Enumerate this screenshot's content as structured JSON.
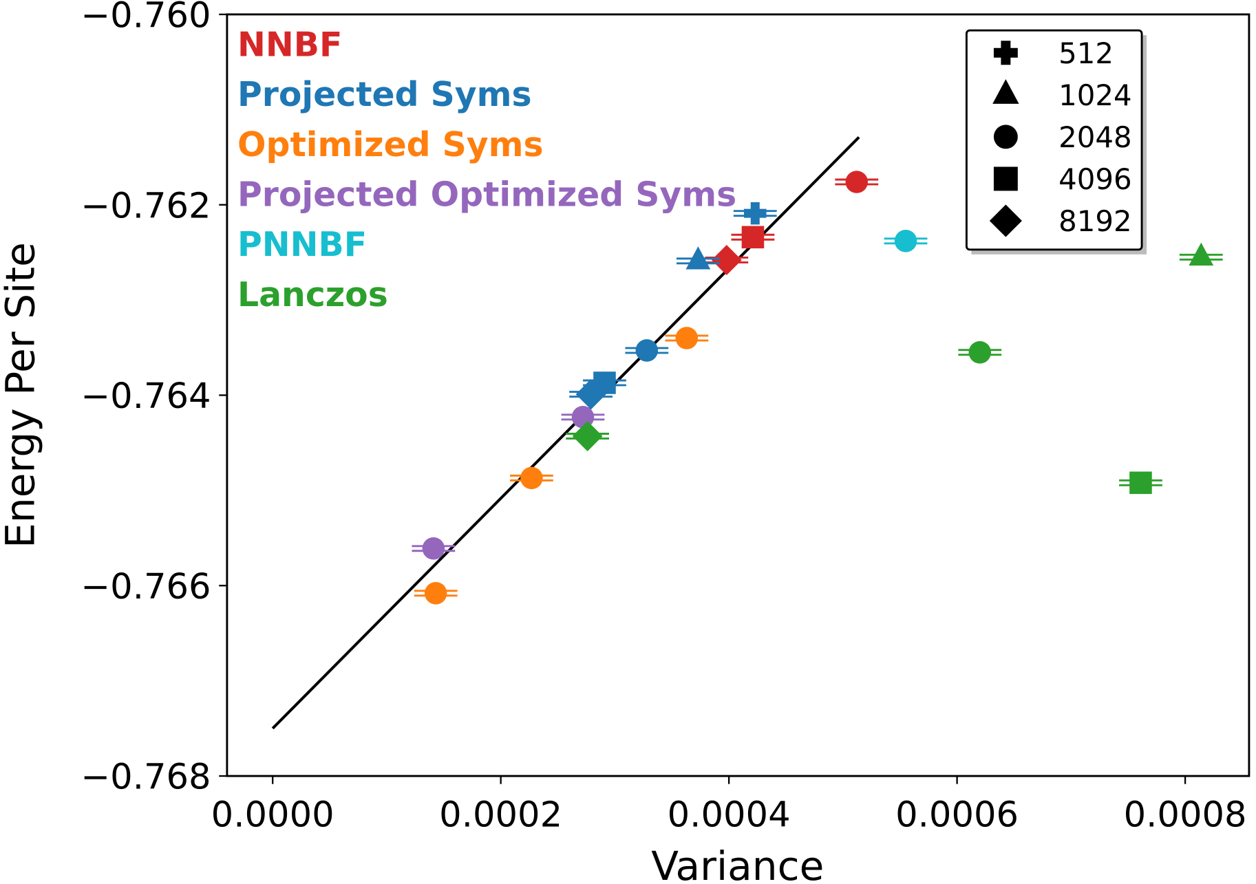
{
  "chart_data": {
    "type": "scatter",
    "xlabel": "Variance",
    "ylabel": "Energy Per Site",
    "xlim": [
      -4e-05,
      0.000856
    ],
    "ylim": [
      -0.768,
      -0.76
    ],
    "xticks": [
      "0.0000",
      "0.0002",
      "0.0004",
      "0.0006",
      "0.0008"
    ],
    "xtick_values": [
      0,
      0.0002,
      0.0004,
      0.0006,
      0.0008
    ],
    "yticks": [
      "−0.760",
      "−0.762",
      "−0.764",
      "−0.766",
      "−0.768"
    ],
    "ytick_values": [
      -0.76,
      -0.762,
      -0.764,
      -0.766,
      -0.768
    ],
    "grid": false,
    "series_legend_placement": "top-left",
    "marker_legend_placement": "top-right",
    "marker_legend": [
      {
        "marker": "plus",
        "label": "512"
      },
      {
        "marker": "triangle",
        "label": "1024"
      },
      {
        "marker": "circle",
        "label": "2048"
      },
      {
        "marker": "square",
        "label": "4096"
      },
      {
        "marker": "diamond",
        "label": "8192"
      }
    ],
    "series": [
      {
        "name": "NNBF",
        "color": "#d62728",
        "points": [
          {
            "x": 0.000512,
            "y": -0.76176,
            "marker": "circle"
          },
          {
            "x": 0.000421,
            "y": -0.76234,
            "marker": "square"
          },
          {
            "x": 0.000398,
            "y": -0.76258,
            "marker": "diamond"
          }
        ]
      },
      {
        "name": "Projected Syms",
        "color": "#1f77b4",
        "points": [
          {
            "x": 0.000423,
            "y": -0.76209,
            "marker": "plus"
          },
          {
            "x": 0.000373,
            "y": -0.76259,
            "marker": "triangle"
          },
          {
            "x": 0.000328,
            "y": -0.76353,
            "marker": "circle"
          },
          {
            "x": 0.000291,
            "y": -0.76387,
            "marker": "square"
          },
          {
            "x": 0.000279,
            "y": -0.76399,
            "marker": "diamond"
          }
        ]
      },
      {
        "name": "Optimized Syms",
        "color": "#ff7f0e",
        "points": [
          {
            "x": 0.000363,
            "y": -0.7634,
            "marker": "circle"
          },
          {
            "x": 0.000227,
            "y": -0.76487,
            "marker": "circle"
          },
          {
            "x": 0.000143,
            "y": -0.76608,
            "marker": "circle"
          }
        ]
      },
      {
        "name": "Projected Optimized Syms",
        "color": "#9467bd",
        "points": [
          {
            "x": 0.000272,
            "y": -0.76423,
            "marker": "circle"
          },
          {
            "x": 0.000141,
            "y": -0.76561,
            "marker": "circle"
          }
        ]
      },
      {
        "name": "PNNBF",
        "color": "#17becf",
        "points": [
          {
            "x": 0.000555,
            "y": -0.76238,
            "marker": "circle"
          }
        ]
      },
      {
        "name": "Lanczos",
        "color": "#2ca02c",
        "points": [
          {
            "x": 0.000814,
            "y": -0.76255,
            "marker": "triangle"
          },
          {
            "x": 0.00062,
            "y": -0.76355,
            "marker": "circle"
          },
          {
            "x": 0.000761,
            "y": -0.76492,
            "marker": "square"
          },
          {
            "x": 0.000276,
            "y": -0.76443,
            "marker": "diamond"
          }
        ]
      }
    ],
    "fit_line": {
      "x": [
        0,
        0.000514
      ],
      "y": [
        -0.7675,
        -0.76129
      ],
      "color": "#000000"
    }
  }
}
